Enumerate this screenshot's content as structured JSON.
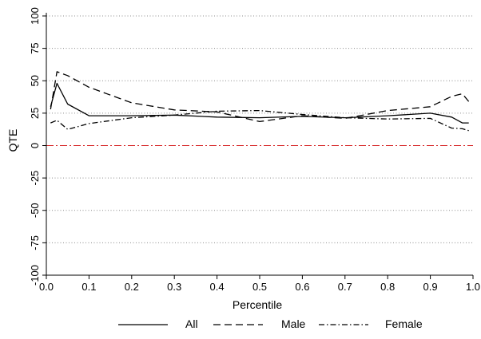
{
  "chart_data": {
    "type": "line",
    "title": "",
    "xlabel": "Percentile",
    "ylabel": "QTE",
    "xlim": [
      0,
      1
    ],
    "ylim": [
      -100,
      100
    ],
    "xticks": [
      "0.0",
      "0.1",
      "0.2",
      "0.3",
      "0.4",
      "0.5",
      "0.6",
      "0.7",
      "0.8",
      "0.9",
      "1.0"
    ],
    "yticks": [
      "-100",
      "-75",
      "-50",
      "-25",
      "0",
      "25",
      "50",
      "75",
      "100"
    ],
    "grid": "horizontal dotted",
    "legend_position": "bottom",
    "reference_line": {
      "y": 0,
      "color": "#d62728",
      "style": "dash-dot"
    },
    "series": [
      {
        "name": "All",
        "style": "solid",
        "color": "#000000",
        "x": [
          0.01,
          0.025,
          0.05,
          0.1,
          0.2,
          0.3,
          0.4,
          0.5,
          0.6,
          0.7,
          0.8,
          0.9,
          0.95,
          0.975,
          0.99
        ],
        "y": [
          30,
          48,
          32,
          23,
          23,
          23.5,
          22,
          21.5,
          22.5,
          21.5,
          23,
          25,
          22,
          17.5,
          17.5
        ]
      },
      {
        "name": "Male",
        "style": "dashed",
        "color": "#000000",
        "x": [
          0.01,
          0.025,
          0.05,
          0.1,
          0.2,
          0.3,
          0.4,
          0.5,
          0.6,
          0.7,
          0.8,
          0.9,
          0.95,
          0.975,
          0.99
        ],
        "y": [
          28,
          57,
          54,
          45,
          33,
          27.5,
          26,
          18.5,
          23,
          21,
          27,
          30,
          38,
          40,
          34
        ]
      },
      {
        "name": "Female",
        "style": "dash-dot",
        "color": "#000000",
        "x": [
          0.01,
          0.025,
          0.05,
          0.1,
          0.2,
          0.3,
          0.4,
          0.5,
          0.6,
          0.7,
          0.8,
          0.9,
          0.95,
          0.975,
          0.99
        ],
        "y": [
          17.5,
          19.5,
          12.5,
          17,
          21.5,
          23.5,
          26.5,
          27,
          24,
          21.5,
          20.5,
          21,
          13.5,
          13,
          11.5
        ]
      }
    ]
  }
}
